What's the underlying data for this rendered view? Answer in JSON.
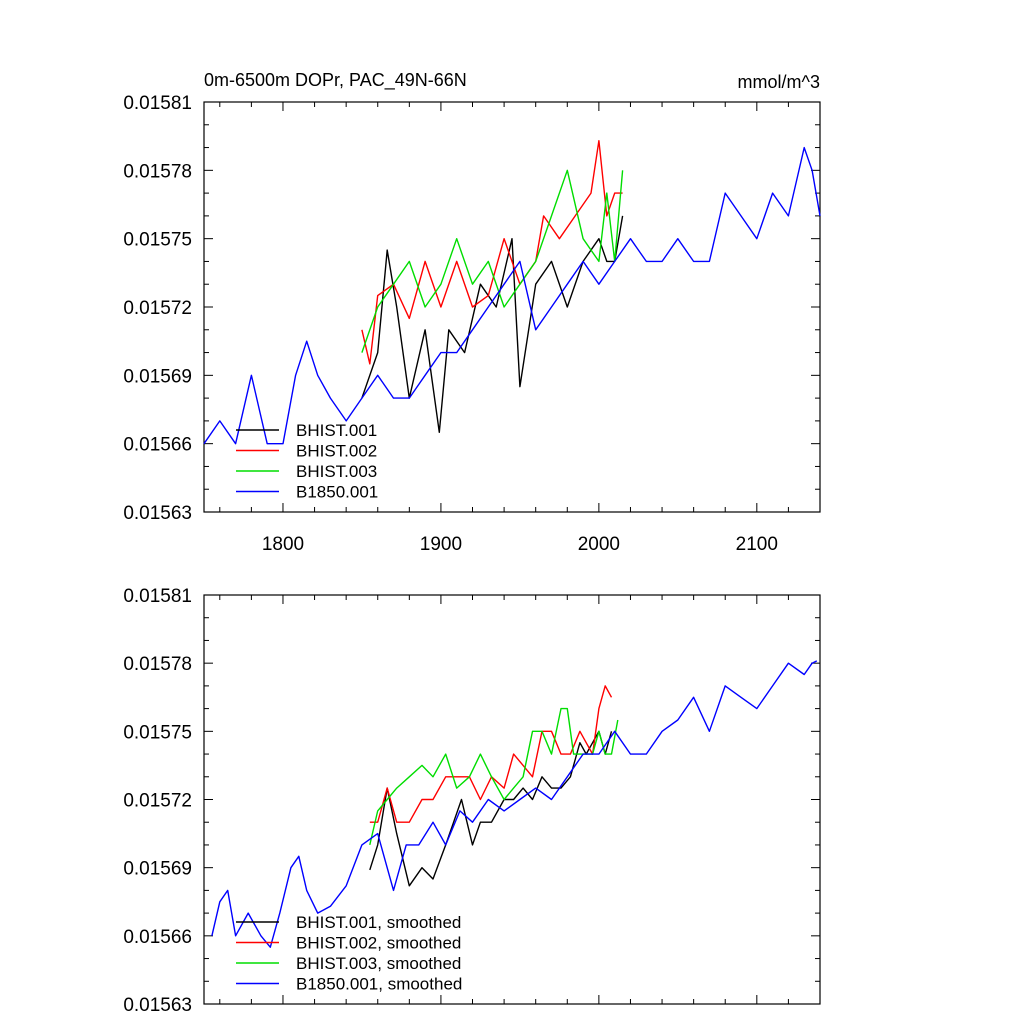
{
  "chart_data": [
    {
      "type": "line",
      "title": "0m-6500m DOPr, PAC_49N-66N",
      "unit_label": "mmol/m^3",
      "xlim": [
        1750,
        2140
      ],
      "ylim": [
        0.01563,
        0.01581
      ],
      "x_ticks": [
        1800,
        1900,
        2000,
        2100
      ],
      "x_tick_labels": [
        "1800",
        "1900",
        "2000",
        "2100"
      ],
      "y_ticks": [
        0.01563,
        0.01566,
        0.01569,
        0.01572,
        0.01575,
        0.01578,
        0.01581
      ],
      "y_tick_labels": [
        "0.01563",
        "0.01566",
        "0.01569",
        "0.01572",
        "0.01575",
        "0.01578",
        "0.01581"
      ],
      "legend_position": "bottom-left",
      "series": [
        {
          "name": "BHIST.001",
          "color": "#000000",
          "x": [
            1850,
            1860,
            1866,
            1872,
            1880,
            1890,
            1899,
            1905,
            1915,
            1925,
            1935,
            1945,
            1950,
            1960,
            1970,
            1980,
            1990,
            2000,
            2005,
            2010,
            2015
          ],
          "y": [
            0.01568,
            0.0157,
            0.015745,
            0.01572,
            0.01568,
            0.01571,
            0.015665,
            0.01571,
            0.0157,
            0.01573,
            0.01572,
            0.01575,
            0.015685,
            0.01573,
            0.01574,
            0.01572,
            0.01574,
            0.01575,
            0.01574,
            0.01574,
            0.01576
          ]
        },
        {
          "name": "BHIST.002",
          "color": "#ff0000",
          "x": [
            1850,
            1855,
            1860,
            1870,
            1880,
            1890,
            1900,
            1910,
            1920,
            1930,
            1940,
            1950,
            1960,
            1965,
            1975,
            1985,
            1995,
            2000,
            2005,
            2010,
            2015
          ],
          "y": [
            0.01571,
            0.015695,
            0.015725,
            0.01573,
            0.015715,
            0.01574,
            0.01572,
            0.01574,
            0.01572,
            0.015725,
            0.01575,
            0.01573,
            0.01574,
            0.01576,
            0.01575,
            0.01576,
            0.01577,
            0.015793,
            0.01576,
            0.01577,
            0.01577
          ]
        },
        {
          "name": "BHIST.003",
          "color": "#00dd00",
          "x": [
            1850,
            1860,
            1870,
            1880,
            1890,
            1900,
            1910,
            1920,
            1930,
            1940,
            1950,
            1960,
            1970,
            1980,
            1990,
            2000,
            2005,
            2010,
            2015
          ],
          "y": [
            0.0157,
            0.01572,
            0.01573,
            0.01574,
            0.01572,
            0.01573,
            0.01575,
            0.01573,
            0.01574,
            0.01572,
            0.01573,
            0.01574,
            0.01576,
            0.01578,
            0.01575,
            0.01574,
            0.01577,
            0.01574,
            0.01578
          ]
        },
        {
          "name": "B1850.001",
          "color": "#0000ff",
          "x": [
            1750,
            1760,
            1770,
            1780,
            1790,
            1800,
            1808,
            1815,
            1822,
            1830,
            1840,
            1850,
            1860,
            1870,
            1880,
            1890,
            1900,
            1910,
            1920,
            1930,
            1940,
            1950,
            1960,
            1970,
            1980,
            1990,
            2000,
            2010,
            2020,
            2030,
            2040,
            2050,
            2060,
            2070,
            2080,
            2090,
            2100,
            2110,
            2120,
            2130,
            2135,
            2140
          ],
          "y": [
            0.01566,
            0.01567,
            0.01566,
            0.01569,
            0.01566,
            0.01566,
            0.01569,
            0.015705,
            0.01569,
            0.01568,
            0.01567,
            0.01568,
            0.01569,
            0.01568,
            0.01568,
            0.01569,
            0.0157,
            0.0157,
            0.01571,
            0.01572,
            0.01573,
            0.01574,
            0.01571,
            0.01572,
            0.01573,
            0.01574,
            0.01573,
            0.01574,
            0.01575,
            0.01574,
            0.01574,
            0.01575,
            0.01574,
            0.01574,
            0.01577,
            0.01576,
            0.01575,
            0.01577,
            0.01576,
            0.01579,
            0.01578,
            0.01576
          ]
        }
      ]
    },
    {
      "type": "line",
      "xlim": [
        1750,
        2140
      ],
      "ylim": [
        0.01563,
        0.01581
      ],
      "x_ticks": [
        1800,
        1900,
        2000,
        2100
      ],
      "y_ticks": [
        0.01563,
        0.01566,
        0.01569,
        0.01572,
        0.01575,
        0.01578,
        0.01581
      ],
      "y_tick_labels": [
        "0.01563",
        "0.01566",
        "0.01569",
        "0.01572",
        "0.01575",
        "0.01578",
        "0.01581"
      ],
      "legend_position": "bottom-left",
      "series": [
        {
          "name": "BHIST.001, smoothed",
          "color": "#000000",
          "x": [
            1855,
            1860,
            1866,
            1872,
            1880,
            1888,
            1895,
            1903,
            1908,
            1913,
            1920,
            1925,
            1932,
            1940,
            1946,
            1952,
            1958,
            1964,
            1970,
            1976,
            1982,
            1988,
            1992,
            1996,
            2000,
            2004,
            2008
          ],
          "y": [
            0.015689,
            0.0157,
            0.015725,
            0.015705,
            0.015682,
            0.01569,
            0.015685,
            0.0157,
            0.01571,
            0.01572,
            0.0157,
            0.01571,
            0.01571,
            0.01572,
            0.01572,
            0.015725,
            0.01572,
            0.01573,
            0.015725,
            0.015725,
            0.01573,
            0.015745,
            0.01574,
            0.015745,
            0.01575,
            0.01574,
            0.01575
          ]
        },
        {
          "name": "BHIST.002, smoothed",
          "color": "#ff0000",
          "x": [
            1855,
            1860,
            1866,
            1872,
            1880,
            1888,
            1895,
            1903,
            1910,
            1918,
            1925,
            1932,
            1940,
            1946,
            1952,
            1958,
            1964,
            1970,
            1976,
            1982,
            1988,
            1992,
            1996,
            2000,
            2004,
            2008
          ],
          "y": [
            0.01571,
            0.01571,
            0.015725,
            0.01571,
            0.01571,
            0.01572,
            0.01572,
            0.01573,
            0.01573,
            0.01573,
            0.01572,
            0.01573,
            0.015725,
            0.01574,
            0.015735,
            0.01573,
            0.01575,
            0.01575,
            0.01574,
            0.01574,
            0.01575,
            0.015745,
            0.01574,
            0.01576,
            0.01577,
            0.015765
          ]
        },
        {
          "name": "BHIST.003, smoothed",
          "color": "#00dd00",
          "x": [
            1855,
            1860,
            1866,
            1872,
            1880,
            1888,
            1895,
            1903,
            1910,
            1918,
            1925,
            1932,
            1940,
            1946,
            1952,
            1958,
            1964,
            1970,
            1976,
            1980,
            1984,
            1988,
            1992,
            1996,
            2000,
            2004,
            2008,
            2012
          ],
          "y": [
            0.0157,
            0.015715,
            0.01572,
            0.015725,
            0.01573,
            0.015735,
            0.01573,
            0.01574,
            0.015725,
            0.01573,
            0.01574,
            0.01573,
            0.01572,
            0.015725,
            0.01573,
            0.01575,
            0.01575,
            0.01574,
            0.01576,
            0.01576,
            0.01574,
            0.01574,
            0.01574,
            0.01574,
            0.01575,
            0.01574,
            0.01574,
            0.015755
          ]
        },
        {
          "name": "B1850.001, smoothed",
          "color": "#0000ff",
          "x": [
            1755,
            1760,
            1765,
            1770,
            1778,
            1786,
            1792,
            1798,
            1805,
            1810,
            1815,
            1822,
            1830,
            1840,
            1850,
            1860,
            1870,
            1878,
            1886,
            1895,
            1903,
            1912,
            1920,
            1930,
            1940,
            1950,
            1960,
            1970,
            1980,
            1990,
            2000,
            2010,
            2020,
            2030,
            2040,
            2050,
            2060,
            2070,
            2080,
            2090,
            2100,
            2110,
            2120,
            2130,
            2135,
            2138
          ],
          "y": [
            0.01566,
            0.015675,
            0.01568,
            0.01566,
            0.01567,
            0.01566,
            0.015655,
            0.01567,
            0.01569,
            0.015695,
            0.01568,
            0.01567,
            0.015673,
            0.015682,
            0.0157,
            0.015705,
            0.01568,
            0.0157,
            0.0157,
            0.01571,
            0.0157,
            0.015715,
            0.01571,
            0.01572,
            0.015715,
            0.01572,
            0.015725,
            0.01572,
            0.01573,
            0.01574,
            0.01574,
            0.01575,
            0.01574,
            0.01574,
            0.01575,
            0.015755,
            0.015765,
            0.01575,
            0.01577,
            0.015765,
            0.01576,
            0.01577,
            0.01578,
            0.015775,
            0.01578,
            0.015781
          ]
        }
      ]
    }
  ]
}
